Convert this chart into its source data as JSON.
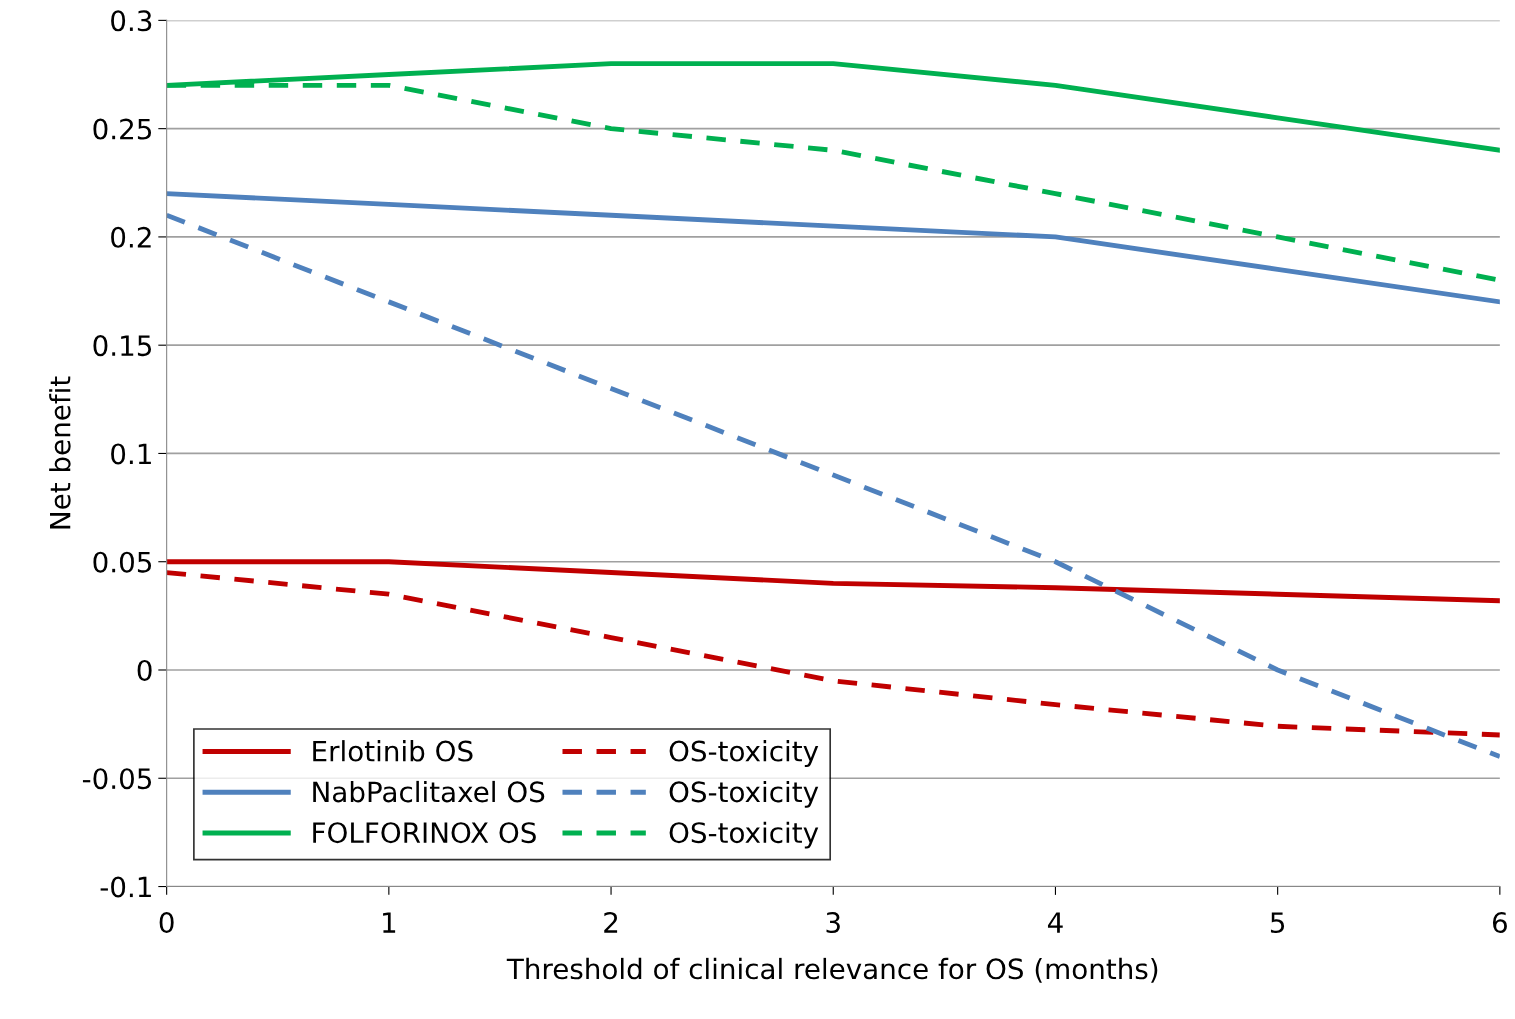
{
  "chart_data": {
    "type": "line",
    "xlabel": "Threshold of clinical relevance for OS (months)",
    "ylabel": "Net benefit",
    "x": [
      0,
      1,
      2,
      3,
      4,
      5,
      6
    ],
    "series": [
      {
        "name": "Erlotinib OS",
        "color": "#c00000",
        "line_style": "solid",
        "values": [
          0.05,
          0.05,
          0.045,
          0.04,
          0.038,
          0.035,
          0.032
        ]
      },
      {
        "name": "NabPaclitaxel OS",
        "color": "#4f81bd",
        "line_style": "solid",
        "values": [
          0.22,
          0.215,
          0.21,
          0.205,
          0.2,
          0.185,
          0.17
        ]
      },
      {
        "name": "FOLFORINOX OS",
        "color": "#00b050",
        "line_style": "solid",
        "values": [
          0.27,
          0.275,
          0.28,
          0.28,
          0.27,
          0.255,
          0.24
        ]
      },
      {
        "name": "OS-toxicity",
        "color": "#c00000",
        "line_style": "dashed",
        "values": [
          0.045,
          0.035,
          0.015,
          -0.005,
          -0.016,
          -0.026,
          -0.03
        ]
      },
      {
        "name": "OS-toxicity",
        "color": "#4f81bd",
        "line_style": "dashed",
        "values": [
          0.21,
          0.17,
          0.13,
          0.09,
          0.05,
          0.0,
          -0.04
        ]
      },
      {
        "name": "OS-toxicity",
        "color": "#00b050",
        "line_style": "dashed",
        "values": [
          0.27,
          0.27,
          0.25,
          0.24,
          0.22,
          0.2,
          0.18
        ]
      }
    ],
    "xlim": [
      0,
      6
    ],
    "xticks": [
      0,
      1,
      2,
      3,
      4,
      5,
      6
    ],
    "ylim": [
      -0.1,
      0.3
    ],
    "yticks": [
      {
        "value": -0.1,
        "label": "-0.1"
      },
      {
        "value": -0.05,
        "label": "-0.05"
      },
      0,
      0.05,
      0.1,
      0.15,
      0.2,
      0.25,
      0.3
    ],
    "grid": "y",
    "legend": "bottom left",
    "marker": "none"
  }
}
